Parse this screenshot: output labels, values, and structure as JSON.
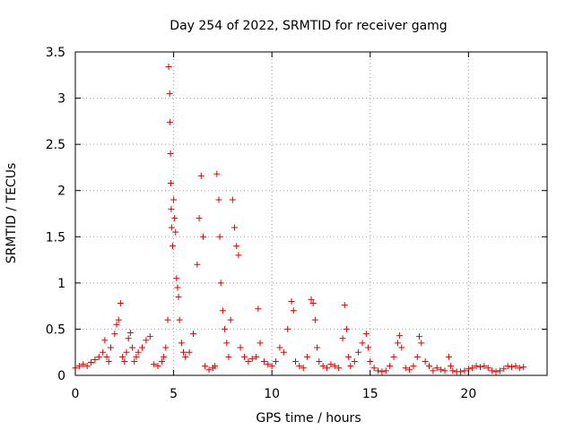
{
  "chart_data": {
    "type": "scatter",
    "title": "Day 254 of 2022, SRMTID for receiver gamg",
    "xlabel": "GPS time / hours",
    "ylabel": "SRMTID / TECUs",
    "xlim": [
      0,
      24
    ],
    "ylim": [
      0,
      3.5
    ],
    "xticks": [
      0,
      5,
      10,
      15,
      20
    ],
    "yticks": [
      0,
      0.5,
      1,
      1.5,
      2,
      2.5,
      3,
      3.5
    ],
    "xtick_labels": [
      "0",
      "5",
      "10",
      "15",
      "20"
    ],
    "ytick_labels": [
      "0",
      "0.5",
      "1",
      "1.5",
      "2",
      "2.5",
      "3",
      "3.5"
    ],
    "grid": true,
    "marker": "+",
    "color": "#e00000",
    "series": [
      {
        "name": "SRMTID",
        "x": [
          0.0,
          0.2,
          0.4,
          0.6,
          0.8,
          1.0,
          1.2,
          1.4,
          1.5,
          1.6,
          1.7,
          1.8,
          2.0,
          2.1,
          2.2,
          2.3,
          2.4,
          2.5,
          2.6,
          2.7,
          2.8,
          2.9,
          3.0,
          3.1,
          3.2,
          3.4,
          3.6,
          3.8,
          4.0,
          4.2,
          4.4,
          4.5,
          4.6,
          4.7,
          4.75,
          4.8,
          4.82,
          4.84,
          4.86,
          4.88,
          4.9,
          4.95,
          5.0,
          5.05,
          5.1,
          5.15,
          5.2,
          5.25,
          5.3,
          5.4,
          5.5,
          5.6,
          5.8,
          6.0,
          6.2,
          6.3,
          6.4,
          6.5,
          6.6,
          6.8,
          7.0,
          7.1,
          7.2,
          7.3,
          7.35,
          7.4,
          7.5,
          7.6,
          7.7,
          7.8,
          7.9,
          8.0,
          8.1,
          8.2,
          8.3,
          8.4,
          8.6,
          8.8,
          9.0,
          9.2,
          9.3,
          9.4,
          9.6,
          9.8,
          10.0,
          10.2,
          10.4,
          10.6,
          10.8,
          11.0,
          11.1,
          11.2,
          11.4,
          11.6,
          11.8,
          12.0,
          12.1,
          12.2,
          12.3,
          12.4,
          12.6,
          12.8,
          13.0,
          13.2,
          13.4,
          13.6,
          13.7,
          13.8,
          13.9,
          14.0,
          14.2,
          14.4,
          14.6,
          14.8,
          14.9,
          15.0,
          15.2,
          15.4,
          15.6,
          15.8,
          16.0,
          16.2,
          16.4,
          16.5,
          16.6,
          16.8,
          17.0,
          17.2,
          17.4,
          17.5,
          17.6,
          17.8,
          18.0,
          18.2,
          18.4,
          18.6,
          18.8,
          19.0,
          19.1,
          19.2,
          19.4,
          19.6,
          19.8,
          20.0,
          20.2,
          20.4,
          20.6,
          20.8,
          21.0,
          21.2,
          21.4,
          21.6,
          21.8,
          22.0,
          22.2,
          22.4,
          22.6,
          22.8
        ],
        "y": [
          0.08,
          0.1,
          0.12,
          0.1,
          0.14,
          0.17,
          0.2,
          0.25,
          0.38,
          0.2,
          0.15,
          0.3,
          0.45,
          0.55,
          0.6,
          0.78,
          0.2,
          0.15,
          0.25,
          0.4,
          0.46,
          0.3,
          0.15,
          0.2,
          0.25,
          0.3,
          0.38,
          0.42,
          0.12,
          0.1,
          0.15,
          0.2,
          0.3,
          0.6,
          3.34,
          3.05,
          2.74,
          2.4,
          2.08,
          1.8,
          1.6,
          1.4,
          1.9,
          1.7,
          1.55,
          1.05,
          0.95,
          0.85,
          0.6,
          0.35,
          0.25,
          0.2,
          0.25,
          0.45,
          1.2,
          1.7,
          2.16,
          1.5,
          0.1,
          0.06,
          0.08,
          0.1,
          2.18,
          1.9,
          1.5,
          1.0,
          0.7,
          0.5,
          0.35,
          0.2,
          0.6,
          1.9,
          1.6,
          1.4,
          1.3,
          0.3,
          0.2,
          0.15,
          0.18,
          0.2,
          0.72,
          0.35,
          0.15,
          0.12,
          0.1,
          0.15,
          0.3,
          0.25,
          0.5,
          0.8,
          0.7,
          0.15,
          0.1,
          0.08,
          0.2,
          0.82,
          0.78,
          0.6,
          0.3,
          0.15,
          0.1,
          0.08,
          0.12,
          0.1,
          0.08,
          0.4,
          0.76,
          0.5,
          0.2,
          0.1,
          0.15,
          0.25,
          0.35,
          0.45,
          0.3,
          0.15,
          0.08,
          0.05,
          0.04,
          0.05,
          0.1,
          0.2,
          0.35,
          0.43,
          0.3,
          0.08,
          0.06,
          0.1,
          0.2,
          0.42,
          0.35,
          0.15,
          0.1,
          0.05,
          0.08,
          0.06,
          0.05,
          0.2,
          0.1,
          0.05,
          0.04,
          0.04,
          0.05,
          0.07,
          0.08,
          0.1,
          0.09,
          0.1,
          0.08,
          0.05,
          0.04,
          0.05,
          0.07,
          0.1,
          0.09,
          0.1,
          0.08,
          0.09
        ]
      }
    ]
  }
}
